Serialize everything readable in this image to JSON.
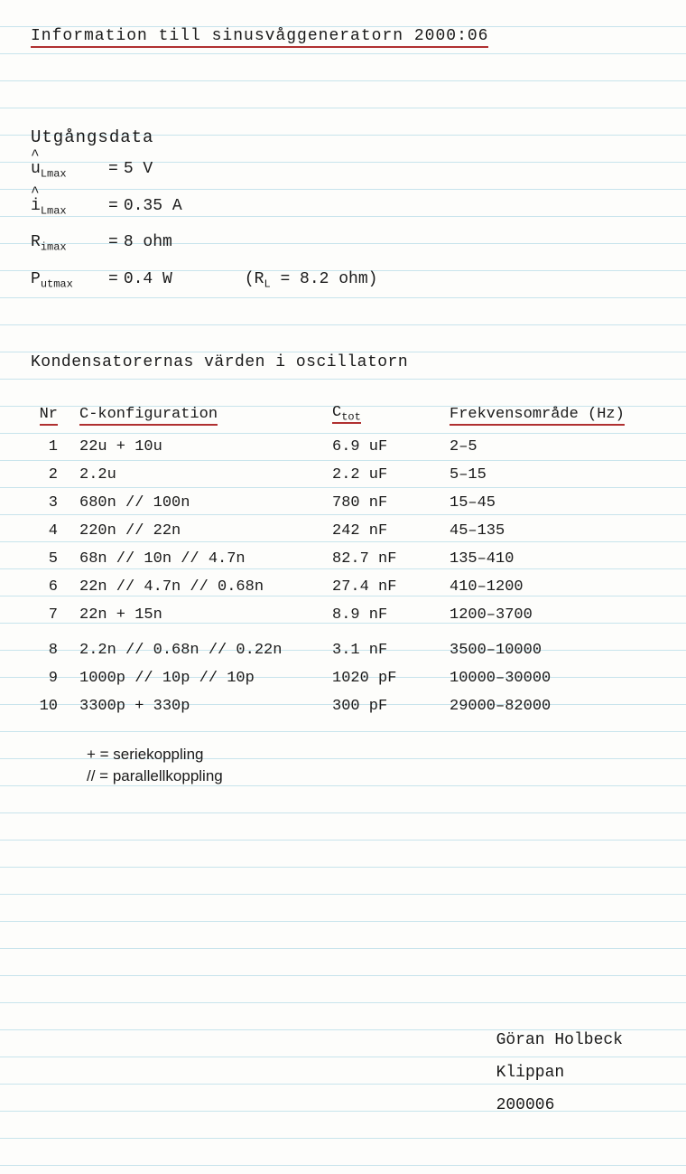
{
  "title": "Information till sinusvåggeneratorn 2000:06",
  "output_data": {
    "heading": "Utgångsdata",
    "lines": [
      {
        "hat": true,
        "var": "u",
        "sub": "Lmax",
        "eq": "=",
        "val": "5 V",
        "extra": ""
      },
      {
        "hat": true,
        "var": "i",
        "sub": "Lmax",
        "eq": "=",
        "val": "0.35 A",
        "extra": ""
      },
      {
        "hat": false,
        "var": "R",
        "sub": "imax",
        "eq": "=",
        "val": "8 ohm",
        "extra": ""
      },
      {
        "hat": false,
        "var": "P",
        "sub": "utmax",
        "eq": "=",
        "val": "0.4 W",
        "extra": "(R_L = 8.2 ohm)"
      }
    ]
  },
  "section2_heading": "Kondensatorernas värden i oscillatorn",
  "table": {
    "headers": {
      "nr": "Nr",
      "conf": "C-konfiguration",
      "ctot_var": "C",
      "ctot_sub": "tot",
      "freq": "Frekvensområde (Hz)"
    },
    "rows": [
      {
        "nr": "1",
        "conf": "22u + 10u",
        "ctot": "6.9 uF",
        "freq": "2–5"
      },
      {
        "nr": "2",
        "conf": "2.2u",
        "ctot": "2.2 uF",
        "freq": "5–15"
      },
      {
        "nr": "3",
        "conf": "680n // 100n",
        "ctot": "780 nF",
        "freq": "15–45"
      },
      {
        "nr": "4",
        "conf": "220n // 22n",
        "ctot": "242 nF",
        "freq": "45–135"
      },
      {
        "nr": "5",
        "conf": "68n // 10n // 4.7n",
        "ctot": "82.7 nF",
        "freq": "135–410"
      },
      {
        "nr": "6",
        "conf": "22n // 4.7n // 0.68n",
        "ctot": "27.4 nF",
        "freq": "410–1200"
      },
      {
        "nr": "7",
        "conf": "22n + 15n",
        "ctot": "8.9 nF",
        "freq": "1200–3700"
      },
      {
        "nr": "8",
        "conf": "2.2n // 0.68n // 0.22n",
        "ctot": "3.1 nF",
        "freq": "3500–10000",
        "gap": true
      },
      {
        "nr": "9",
        "conf": "1000p // 10p // 10p",
        "ctot": "1020 pF",
        "freq": "10000–30000"
      },
      {
        "nr": "10",
        "conf": "3300p + 330p",
        "ctot": "300 pF",
        "freq": "29000–82000"
      }
    ]
  },
  "legend": {
    "line1": "+ = seriekoppling",
    "line2": "// = parallellkoppling"
  },
  "signature": {
    "name": "Göran Holbeck",
    "place": "Klippan",
    "date": "200006"
  },
  "colors": {
    "underline": "#b03030",
    "rule_line": "#c8e4ec",
    "text": "#1a1a1a",
    "background": "#fdfdfb"
  }
}
